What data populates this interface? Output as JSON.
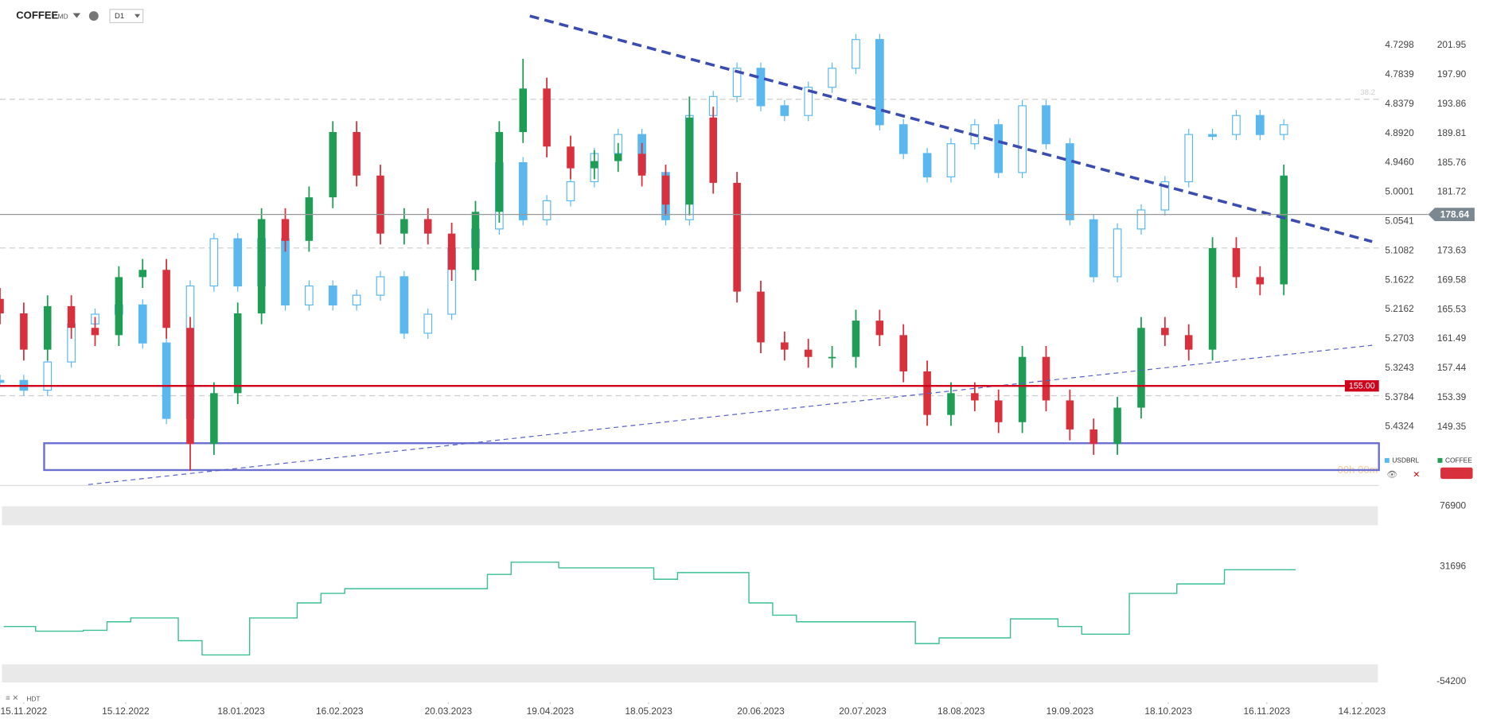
{
  "chart_data": [
    {
      "type": "candlestick",
      "title": "COFFEE",
      "subtitle": "CMD",
      "timeframe": "D1",
      "x": [
        "2022-11-08",
        "2022-11-15",
        "2022-11-22",
        "2022-11-29",
        "2022-12-06",
        "2022-12-13",
        "2022-12-20",
        "2022-12-27",
        "2023-01-03",
        "2023-01-10",
        "2023-01-17",
        "2023-01-24",
        "2023-01-31",
        "2023-02-07",
        "2023-02-14",
        "2023-02-21",
        "2023-02-28",
        "2023-03-07",
        "2023-03-14",
        "2023-03-21",
        "2023-03-28",
        "2023-04-04",
        "2023-04-11",
        "2023-04-18",
        "2023-04-25",
        "2023-05-02",
        "2023-05-09",
        "2023-05-16",
        "2023-05-23",
        "2023-05-30",
        "2023-06-06",
        "2023-06-13",
        "2023-06-20",
        "2023-06-27",
        "2023-07-04",
        "2023-07-11",
        "2023-07-18",
        "2023-07-25",
        "2023-08-01",
        "2023-08-08",
        "2023-08-15",
        "2023-08-22",
        "2023-08-29",
        "2023-09-05",
        "2023-09-12",
        "2023-09-19",
        "2023-09-26",
        "2023-10-03",
        "2023-10-10",
        "2023-10-17",
        "2023-10-24",
        "2023-10-31",
        "2023-11-07",
        "2023-11-14",
        "2023-11-21"
      ],
      "xlim": [
        "2022-11-08",
        "2023-12-19"
      ],
      "xticks": [
        {
          "value": "2022-11-15",
          "label": "15.11.2022"
        },
        {
          "value": "2022-12-15",
          "label": "15.12.2022"
        },
        {
          "value": "2023-01-18",
          "label": "18.01.2023"
        },
        {
          "value": "2023-02-16",
          "label": "16.02.2023"
        },
        {
          "value": "2023-03-20",
          "label": "20.03.2023"
        },
        {
          "value": "2023-04-19",
          "label": "19.04.2023"
        },
        {
          "value": "2023-05-18",
          "label": "18.05.2023"
        },
        {
          "value": "2023-06-20",
          "label": "20.06.2023"
        },
        {
          "value": "2023-07-20",
          "label": "20.07.2023"
        },
        {
          "value": "2023-08-18",
          "label": "18.08.2023"
        },
        {
          "value": "2023-09-19",
          "label": "19.09.2023"
        },
        {
          "value": "2023-10-18",
          "label": "18.10.2023"
        },
        {
          "value": "2023-11-16",
          "label": "16.11.2023"
        },
        {
          "value": "2023-12-14",
          "label": "14.12.2023"
        }
      ],
      "ylim": [
        141.4,
        206.65
      ],
      "yticks": [
        {
          "value": 201.95,
          "label": "201.95"
        },
        {
          "value": 197.9,
          "label": "197.90"
        },
        {
          "value": 193.86,
          "label": "193.86"
        },
        {
          "value": 189.81,
          "label": "189.81"
        },
        {
          "value": 185.76,
          "label": "185.76"
        },
        {
          "value": 181.72,
          "label": "181.72"
        },
        {
          "value": 173.63,
          "label": "173.63"
        },
        {
          "value": 169.58,
          "label": "169.58"
        },
        {
          "value": 165.53,
          "label": "165.53"
        },
        {
          "value": 161.49,
          "label": "161.49"
        },
        {
          "value": 157.44,
          "label": "157.44"
        },
        {
          "value": 153.39,
          "label": "153.39"
        },
        {
          "value": 149.35,
          "label": "149.35"
        }
      ],
      "y2lim": [
        5.5388,
        4.667
      ],
      "y2ticks": [
        {
          "value": 4.7298,
          "label": "4.7298"
        },
        {
          "value": 4.7839,
          "label": "4.7839"
        },
        {
          "value": 4.8379,
          "label": "4.8379"
        },
        {
          "value": 4.892,
          "label": "4.8920"
        },
        {
          "value": 4.946,
          "label": "4.9460"
        },
        {
          "value": 5.0001,
          "label": "5.0001"
        },
        {
          "value": 5.0541,
          "label": "5.0541"
        },
        {
          "value": 5.1082,
          "label": "5.1082"
        },
        {
          "value": 5.1622,
          "label": "5.1622"
        },
        {
          "value": 5.2162,
          "label": "5.2162"
        },
        {
          "value": 5.2703,
          "label": "5.2703"
        },
        {
          "value": 5.3243,
          "label": "5.3243"
        },
        {
          "value": 5.3784,
          "label": "5.3784"
        },
        {
          "value": 5.4324,
          "label": "5.4324"
        }
      ],
      "series": [
        {
          "name": "USDBRL",
          "axis": "y2",
          "color": "#5ab8ef",
          "values": [
            5.347,
            5.365,
            5.313,
            5.243,
            5.225,
            5.208,
            5.278,
            5.417,
            5.173,
            5.086,
            5.173,
            5.086,
            5.208,
            5.173,
            5.208,
            5.19,
            5.156,
            5.26,
            5.225,
            5.103,
            5.068,
            4.946,
            5.051,
            5.016,
            4.981,
            4.929,
            4.894,
            4.964,
            5.051,
            4.859,
            4.824,
            4.772,
            4.841,
            4.859,
            4.807,
            4.772,
            4.719,
            4.876,
            4.929,
            4.972,
            4.911,
            4.876,
            4.964,
            4.841,
            4.911,
            5.051,
            5.156,
            5.068,
            5.033,
            4.981,
            4.894,
            4.894,
            4.859,
            4.894,
            4.876
          ]
        },
        {
          "name": "COFFEE",
          "up_color": "#1f9d55",
          "down_color": "#d8303c",
          "open": [
            167,
            165,
            160,
            166,
            163,
            162,
            170,
            171,
            163,
            147,
            154,
            165,
            178,
            175,
            181,
            190,
            184,
            176,
            178,
            176,
            171,
            179,
            190,
            196,
            188,
            185,
            186,
            187,
            184,
            180,
            192,
            183,
            168,
            161,
            160,
            159,
            159,
            164,
            162,
            157,
            151,
            154,
            153,
            150,
            159,
            153,
            149,
            147,
            152,
            163,
            162,
            160,
            174,
            170,
            169
          ],
          "high": [
            168.5,
            166.5,
            167.5,
            167.5,
            164.5,
            171.5,
            172.5,
            172.5,
            164.5,
            155.5,
            166.5,
            179.5,
            179.5,
            182.5,
            191.5,
            191.5,
            185.5,
            179.5,
            179.5,
            177.5,
            180.5,
            191.5,
            200.1,
            197.5,
            189.5,
            187.5,
            188.5,
            188.5,
            185.5,
            194.9,
            193.5,
            184.5,
            169.5,
            162.5,
            161.5,
            160.5,
            165.5,
            165.5,
            163.5,
            158.5,
            155.5,
            155.5,
            154.5,
            160.5,
            160.5,
            154.5,
            150.5,
            153.5,
            164.5,
            164.5,
            163.5,
            175.5,
            175.5,
            171.5,
            185.5
          ],
          "low": [
            163.5,
            158.5,
            158.5,
            161.5,
            160.5,
            160.5,
            168.5,
            161.5,
            143.3,
            145.5,
            152.5,
            163.5,
            173.5,
            173.5,
            179.5,
            182.5,
            174.5,
            174.5,
            174.5,
            169.5,
            169.5,
            177.5,
            188.5,
            186.5,
            183.5,
            183.5,
            184.5,
            182.5,
            178.5,
            178.5,
            181.5,
            166.5,
            159.5,
            158.5,
            157.5,
            157.5,
            157.5,
            160.5,
            155.5,
            149.5,
            149.5,
            151.5,
            148.5,
            148.5,
            151.5,
            147.5,
            145.5,
            145.5,
            150.5,
            160.5,
            158.5,
            158.5,
            168.5,
            167.5,
            167.5
          ],
          "close": [
            165,
            160,
            166,
            163,
            162,
            170,
            171,
            163,
            147,
            154,
            165,
            178,
            175,
            181,
            190,
            184,
            176,
            178,
            176,
            171,
            179,
            190,
            196,
            188,
            185,
            186,
            187,
            184,
            180,
            192,
            183,
            168,
            161,
            160,
            159,
            159,
            164,
            162,
            157,
            151,
            154,
            153,
            150,
            159,
            153,
            149,
            147,
            152,
            163,
            162,
            160,
            174,
            170,
            169,
            184
          ]
        }
      ],
      "last_price": {
        "value": 178.64,
        "label": "178.64"
      },
      "levels": [
        {
          "value": 155,
          "label": "155.00",
          "color": "#d0021b"
        }
      ],
      "dashed_levels": [
        {
          "value": 194.51,
          "label": "38.2"
        },
        {
          "value": 174.01
        },
        {
          "value": 153.65
        }
      ],
      "zone": {
        "x": [
          "2022-11-21",
          "2023-12-19"
        ],
        "values": [
          143.4,
          147.1
        ],
        "color": "#6b6fd0"
      },
      "trendlines": [
        {
          "x": [
            "2023-04-13",
            "2023-12-17"
          ],
          "values": [
            206.0,
            174.9
          ],
          "color": "#3b4bb0",
          "width": 3
        },
        {
          "x": [
            "2022-12-04",
            "2023-12-17"
          ],
          "values": [
            141.4,
            160.6
          ],
          "color": "#5560c8",
          "width": 1
        }
      ],
      "timer": "00h 00m",
      "timezone": "HDT"
    },
    {
      "type": "line",
      "step": true,
      "color": "#3cbf96",
      "values": [
        -13100,
        -13100,
        -16600,
        -16600,
        -15900,
        -9550,
        -6700,
        -6700,
        -23700,
        -34350,
        -34350,
        -6700,
        -6700,
        4600,
        11700,
        15250,
        15250,
        15250,
        15250,
        15250,
        15250,
        25900,
        35090,
        35090,
        30840,
        30840,
        30840,
        30840,
        22300,
        27300,
        27300,
        27300,
        4600,
        -4600,
        -9550,
        -9550,
        -9550,
        -9550,
        -9550,
        -25850,
        -21600,
        -21600,
        -21600,
        -7400,
        -7400,
        -13100,
        -18800,
        -18800,
        11700,
        11700,
        18800,
        18800,
        29400,
        29400,
        29400
      ],
      "ylim": [
        -54200,
        76900
      ],
      "yticks": [
        76900,
        31696,
        -54200
      ]
    }
  ]
}
